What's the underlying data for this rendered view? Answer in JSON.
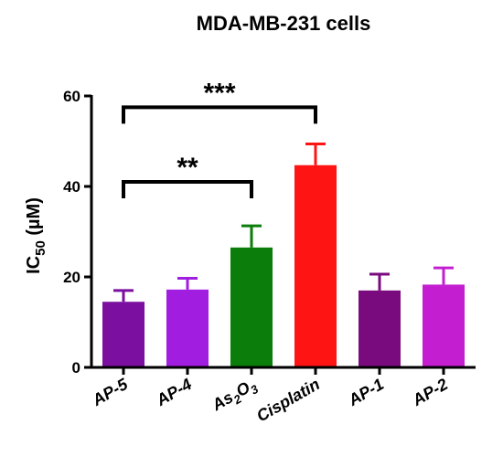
{
  "chart_data": {
    "type": "bar",
    "title": "MDA-MB-231 cells",
    "ylabel": {
      "main": "IC",
      "sub": "50",
      "unit": " (µM)"
    },
    "ylim": [
      0,
      60
    ],
    "yticks": [
      "0",
      "20",
      "40",
      "60"
    ],
    "categories": [
      {
        "text": "AP-5"
      },
      {
        "text": "AP-4"
      },
      {
        "text": "As",
        "sub1": "2",
        "mid": "O",
        "sub2": "3"
      },
      {
        "text": "Cisplatin"
      },
      {
        "text": "AP-1"
      },
      {
        "text": "AP-2"
      }
    ],
    "values": [
      14.5,
      17.2,
      26.5,
      44.7,
      17.0,
      18.3
    ],
    "errors": [
      2.5,
      2.5,
      4.8,
      4.7,
      3.6,
      3.7
    ],
    "colors": [
      "#7b0fa0",
      "#a11de0",
      "#0a7d0a",
      "#ff1414",
      "#7a0b7e",
      "#c31fd0"
    ],
    "significance": [
      {
        "from": 0,
        "to": 2,
        "label": "**",
        "y": 41
      },
      {
        "from": 0,
        "to": 3,
        "label": "***",
        "y": 57.5
      }
    ],
    "grid": false,
    "legend": "none"
  }
}
